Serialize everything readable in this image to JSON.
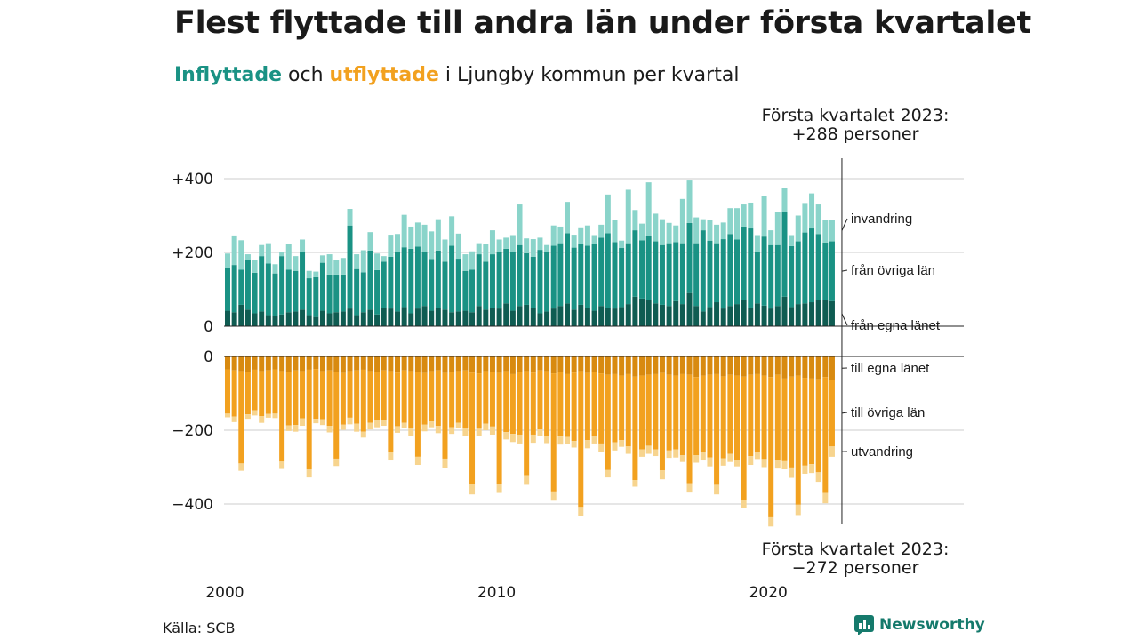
{
  "title": "Flest flyttade till andra län under första kvartalet",
  "subtitle": {
    "in_word": "Inflyttade",
    "mid": "och",
    "out_word": "utflyttade",
    "rest": "i Ljungby kommun per kvartal"
  },
  "annotation_top": {
    "line1": "Första kvartalet 2023:",
    "line2": "+288 personer"
  },
  "annotation_bottom": {
    "line1": "Första kvartalet 2023:",
    "line2": "−272 personer"
  },
  "source": "Källa: SCB",
  "logo": {
    "text": "Newsworthy",
    "icon": "bar-chart-logo-icon"
  },
  "colors": {
    "in_own": "#0f5c52",
    "in_other": "#1a9284",
    "in_immig": "#8ad4ca",
    "out_own": "#d88a10",
    "out_other": "#f2a11f",
    "out_emig": "#f7d48e",
    "grid": "#dddddd",
    "axis": "#222222",
    "text": "#1a1a1a"
  },
  "chart_data": {
    "type": "bar",
    "stacked": true,
    "x_start": "2000-Q1",
    "x_end": "2023-Q1",
    "x_ticks": [
      "2000",
      "2010",
      "2020"
    ],
    "y_ticks": [
      "+400",
      "+200",
      "0",
      "0",
      "−200",
      "−400"
    ],
    "ylim_in": [
      0,
      460
    ],
    "ylim_out": [
      -460,
      0
    ],
    "grid": true,
    "series": [
      {
        "name": "från egna länet",
        "values": [
          42,
          38,
          58,
          45,
          35,
          40,
          30,
          28,
          32,
          38,
          40,
          45,
          30,
          25,
          42,
          35,
          38,
          40,
          48,
          30,
          38,
          45,
          32,
          50,
          48,
          40,
          52,
          35,
          48,
          55,
          42,
          50,
          45,
          38,
          40,
          42,
          38,
          55,
          45,
          50,
          48,
          62,
          42,
          55,
          58,
          50,
          35,
          40,
          48,
          55,
          62,
          45,
          58,
          50,
          42,
          55,
          50,
          48,
          52,
          60,
          80,
          75,
          70,
          62,
          58,
          55,
          68,
          60,
          90,
          55,
          40,
          52,
          65,
          48,
          55,
          60,
          70,
          50,
          62,
          56,
          48,
          55,
          80,
          52,
          60,
          62,
          65,
          70,
          72,
          68
        ]
      },
      {
        "name": "från övriga län",
        "values": [
          115,
          128,
          95,
          135,
          110,
          150,
          140,
          115,
          158,
          115,
          110,
          155,
          100,
          108,
          130,
          105,
          102,
          100,
          225,
          125,
          108,
          160,
          120,
          125,
          140,
          160,
          162,
          175,
          168,
          145,
          140,
          155,
          130,
          180,
          143,
          108,
          115,
          140,
          130,
          145,
          152,
          148,
          160,
          165,
          140,
          138,
          172,
          160,
          170,
          170,
          190,
          168,
          165,
          168,
          180,
          185,
          202,
          180,
          160,
          165,
          180,
          158,
          175,
          168,
          162,
          170,
          160,
          165,
          190,
          170,
          220,
          180,
          160,
          188,
          195,
          175,
          200,
          215,
          140,
          187,
          172,
          165,
          230,
          165,
          170,
          192,
          200,
          180,
          155,
          162
        ]
      },
      {
        "name": "invandring",
        "values": [
          40,
          80,
          80,
          15,
          35,
          30,
          55,
          25,
          10,
          70,
          40,
          35,
          20,
          15,
          20,
          55,
          40,
          45,
          45,
          40,
          60,
          50,
          45,
          15,
          60,
          50,
          88,
          60,
          65,
          75,
          75,
          85,
          60,
          80,
          68,
          45,
          50,
          30,
          48,
          65,
          35,
          30,
          45,
          110,
          40,
          48,
          33,
          20,
          55,
          45,
          85,
          35,
          45,
          55,
          25,
          35,
          105,
          60,
          20,
          145,
          55,
          45,
          145,
          75,
          70,
          55,
          45,
          120,
          115,
          70,
          30,
          55,
          50,
          45,
          70,
          85,
          60,
          70,
          45,
          110,
          40,
          90,
          65,
          30,
          70,
          80,
          95,
          80,
          60,
          58
        ]
      },
      {
        "name": "till egna länet",
        "values": [
          -35,
          -38,
          -40,
          -42,
          -36,
          -40,
          -38,
          -35,
          -40,
          -42,
          -38,
          -40,
          -36,
          -34,
          -40,
          -38,
          -42,
          -45,
          -40,
          -38,
          -36,
          -40,
          -42,
          -38,
          -40,
          -44,
          -38,
          -40,
          -42,
          -45,
          -40,
          -38,
          -45,
          -42,
          -40,
          -38,
          -44,
          -46,
          -40,
          -42,
          -45,
          -40,
          -48,
          -42,
          -40,
          -44,
          -38,
          -40,
          -46,
          -42,
          -48,
          -44,
          -40,
          -45,
          -42,
          -46,
          -50,
          -48,
          -52,
          -48,
          -55,
          -52,
          -50,
          -48,
          -45,
          -50,
          -52,
          -48,
          -50,
          -56,
          -52,
          -50,
          -48,
          -54,
          -50,
          -52,
          -55,
          -50,
          -48,
          -52,
          -56,
          -50,
          -60,
          -55,
          -52,
          -58,
          -60,
          -62,
          -56,
          -64
        ]
      },
      {
        "name": "till övriga län",
        "values": [
          -120,
          -125,
          -250,
          -115,
          -110,
          -122,
          -118,
          -120,
          -245,
          -145,
          -148,
          -128,
          -270,
          -135,
          -130,
          -150,
          -235,
          -140,
          -126,
          -144,
          -168,
          -140,
          -130,
          -135,
          -220,
          -145,
          -142,
          -155,
          -230,
          -140,
          -136,
          -150,
          -232,
          -150,
          -140,
          -156,
          -302,
          -150,
          -142,
          -148,
          -300,
          -165,
          -162,
          -170,
          -282,
          -168,
          -160,
          -175,
          -320,
          -175,
          -170,
          -185,
          -368,
          -182,
          -174,
          -190,
          -258,
          -185,
          -175,
          -196,
          -280,
          -200,
          -192,
          -204,
          -264,
          -205,
          -200,
          -220,
          -294,
          -212,
          -208,
          -224,
          -300,
          -222,
          -214,
          -228,
          -334,
          -220,
          -210,
          -226,
          -380,
          -230,
          -224,
          -246,
          -350,
          -238,
          -232,
          -252,
          -314,
          -180
        ]
      },
      {
        "name": "utvandring",
        "values": [
          -10,
          -15,
          -20,
          -12,
          -14,
          -18,
          -10,
          -12,
          -20,
          -15,
          -18,
          -20,
          -22,
          -12,
          -16,
          -18,
          -20,
          -14,
          -18,
          -22,
          -16,
          -18,
          -20,
          -15,
          -22,
          -18,
          -15,
          -20,
          -22,
          -18,
          -16,
          -20,
          -25,
          -18,
          -15,
          -22,
          -28,
          -20,
          -18,
          -22,
          -25,
          -20,
          -22,
          -24,
          -26,
          -22,
          -18,
          -20,
          -25,
          -22,
          -20,
          -18,
          -25,
          -22,
          -20,
          -24,
          -20,
          -22,
          -18,
          -20,
          -18,
          -20,
          -22,
          -18,
          -24,
          -20,
          -22,
          -18,
          -25,
          -20,
          -22,
          -24,
          -26,
          -20,
          -22,
          -18,
          -22,
          -24,
          -20,
          -22,
          -25,
          -24,
          -22,
          -28,
          -28,
          -22,
          -24,
          -26,
          -28,
          -28
        ]
      }
    ]
  }
}
